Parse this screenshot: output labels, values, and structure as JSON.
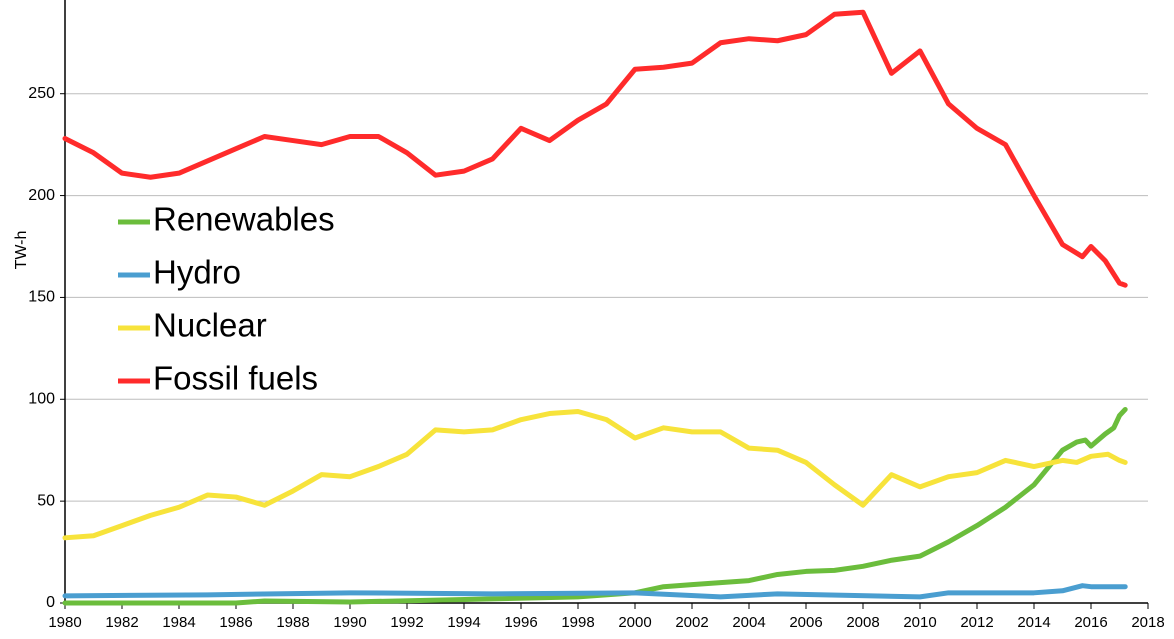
{
  "chart_data": {
    "type": "line",
    "y_label": "TW-h",
    "xlim": [
      1980,
      2018
    ],
    "xticks": [
      1980,
      1982,
      1984,
      1986,
      1988,
      1990,
      1992,
      1994,
      1996,
      1998,
      2000,
      2002,
      2004,
      2006,
      2008,
      2010,
      2012,
      2014,
      2016,
      2018
    ],
    "ylim": [
      0,
      296
    ],
    "yticks": [
      0,
      50,
      100,
      150,
      200,
      250
    ],
    "grid": true,
    "legend": "left",
    "series": [
      {
        "name": "Renewables",
        "color": "#6bbd3c",
        "x": [
          1980,
          1986,
          1987,
          1990,
          1995,
          1998,
          2000,
          2001,
          2002,
          2003,
          2004,
          2005,
          2006,
          2007,
          2008,
          2009,
          2010,
          2011,
          2012,
          2013,
          2014,
          2015,
          2015.5,
          2015.8,
          2016,
          2016.5,
          2016.8,
          2017,
          2017.2
        ],
        "values": [
          0,
          0,
          1,
          0.5,
          2,
          3,
          5,
          8,
          9,
          10,
          11,
          14,
          15.5,
          16,
          18,
          21,
          23,
          30,
          38,
          47,
          58,
          75,
          79,
          80,
          77,
          83,
          86,
          92,
          95
        ]
      },
      {
        "name": "Hydro",
        "color": "#4a9ed0",
        "x": [
          1980,
          1985,
          1990,
          1995,
          2000,
          2003,
          2005,
          2010,
          2011,
          2014,
          2015,
          2015.7,
          2016,
          2017,
          2017.2
        ],
        "values": [
          3.5,
          4,
          5,
          4.5,
          5,
          3,
          4.5,
          3,
          5,
          5,
          6,
          8.5,
          8,
          8,
          8
        ]
      },
      {
        "name": "Nuclear",
        "color": "#f7e33b",
        "x": [
          1980,
          1981,
          1982,
          1983,
          1984,
          1985,
          1986,
          1987,
          1988,
          1989,
          1990,
          1991,
          1992,
          1993,
          1994,
          1995,
          1996,
          1997,
          1998,
          1999,
          2000,
          2001,
          2002,
          2003,
          2004,
          2005,
          2006,
          2007,
          2008,
          2009,
          2010,
          2011,
          2012,
          2013,
          2014,
          2015,
          2015.5,
          2016,
          2016.6,
          2017,
          2017.2
        ],
        "values": [
          32,
          33,
          38,
          43,
          47,
          53,
          52,
          48,
          55,
          63,
          62,
          67,
          73,
          85,
          84,
          85,
          90,
          93,
          94,
          90,
          81,
          86,
          84,
          84,
          76,
          75,
          69,
          58,
          48,
          63,
          57,
          62,
          64,
          70,
          67,
          70,
          69,
          72,
          73,
          70,
          69
        ]
      },
      {
        "name": "Fossil fuels",
        "color": "#ff2b2b",
        "x": [
          1980,
          1981,
          1982,
          1983,
          1984,
          1985,
          1986,
          1987,
          1988,
          1989,
          1990,
          1991,
          1992,
          1993,
          1994,
          1995,
          1996,
          1997,
          1998,
          1999,
          2000,
          2001,
          2002,
          2003,
          2004,
          2005,
          2006,
          2007,
          2008,
          2009,
          2010,
          2011,
          2012,
          2013,
          2014,
          2015,
          2015.7,
          2016,
          2016.5,
          2017,
          2017.2
        ],
        "values": [
          228,
          221,
          211,
          209,
          211,
          217,
          223,
          229,
          227,
          225,
          229,
          229,
          221,
          210,
          212,
          218,
          233,
          227,
          237,
          245,
          262,
          263,
          265,
          275,
          277,
          276,
          279,
          289,
          290,
          260,
          271,
          245,
          233,
          225,
          200,
          176,
          170,
          175,
          168,
          157,
          156
        ]
      }
    ]
  }
}
